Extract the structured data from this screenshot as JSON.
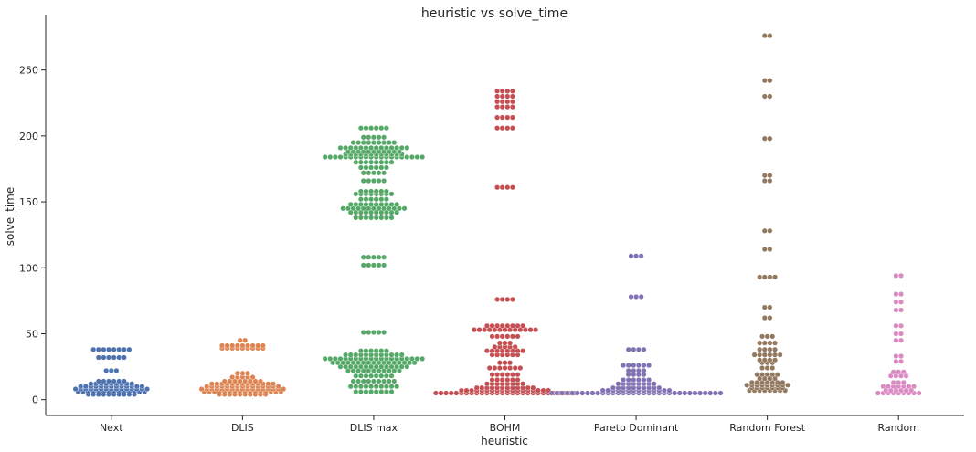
{
  "chart_data": {
    "type": "swarm",
    "title": "heuristic vs solve_time",
    "xlabel": "heuristic",
    "ylabel": "solve_time",
    "ylim": [
      -12,
      292
    ],
    "yticks": [
      0,
      50,
      100,
      150,
      200,
      250
    ],
    "grid": false,
    "legend": "none",
    "categories": [
      "Next",
      "DLIS",
      "DLIS max",
      "BOHM",
      "Pareto Dominant",
      "Random Forest",
      "Random"
    ],
    "colors": [
      "#4c72b0",
      "#dd8452",
      "#55a868",
      "#c44e52",
      "#8172b3",
      "#937860",
      "#da8bc3"
    ],
    "series": [
      {
        "category": "Next",
        "groups": [
          [
            4,
            10
          ],
          [
            6,
            14
          ],
          [
            8,
            15
          ],
          [
            10,
            13
          ],
          [
            12,
            9
          ],
          [
            14,
            6
          ],
          [
            22,
            3
          ],
          [
            32,
            6
          ],
          [
            38,
            8
          ]
        ]
      },
      {
        "category": "DLIS",
        "groups": [
          [
            4,
            10
          ],
          [
            6,
            16
          ],
          [
            8,
            17
          ],
          [
            10,
            15
          ],
          [
            12,
            13
          ],
          [
            14,
            8
          ],
          [
            17,
            5
          ],
          [
            20,
            3
          ],
          [
            39,
            9
          ],
          [
            41,
            9
          ],
          [
            45,
            2
          ]
        ]
      },
      {
        "category": "DLIS max",
        "groups": [
          [
            6,
            8
          ],
          [
            10,
            10
          ],
          [
            14,
            9
          ],
          [
            18,
            8
          ],
          [
            22,
            11
          ],
          [
            25,
            14
          ],
          [
            28,
            17
          ],
          [
            31,
            20
          ],
          [
            34,
            12
          ],
          [
            37,
            6
          ],
          [
            51,
            5
          ],
          [
            102,
            5
          ],
          [
            108,
            5
          ],
          [
            138,
            8
          ],
          [
            142,
            10
          ],
          [
            145,
            13
          ],
          [
            148,
            10
          ],
          [
            152,
            6
          ],
          [
            156,
            8
          ],
          [
            158,
            6
          ],
          [
            166,
            5
          ],
          [
            172,
            5
          ],
          [
            176,
            6
          ],
          [
            180,
            8
          ],
          [
            184,
            20
          ],
          [
            186,
            12
          ],
          [
            188,
            11
          ],
          [
            191,
            14
          ],
          [
            195,
            9
          ],
          [
            199,
            5
          ],
          [
            206,
            6
          ]
        ]
      },
      {
        "category": "BOHM",
        "groups": [
          [
            5,
            28
          ],
          [
            7,
            18
          ],
          [
            9,
            12
          ],
          [
            12,
            8
          ],
          [
            15,
            6
          ],
          [
            19,
            6
          ],
          [
            24,
            7
          ],
          [
            28,
            3
          ],
          [
            34,
            6
          ],
          [
            37,
            8
          ],
          [
            40,
            5
          ],
          [
            43,
            3
          ],
          [
            48,
            6
          ],
          [
            53,
            13
          ],
          [
            56,
            8
          ],
          [
            76,
            4
          ],
          [
            161,
            4
          ],
          [
            206,
            4
          ],
          [
            214,
            4
          ],
          [
            222,
            4
          ],
          [
            226,
            4
          ],
          [
            230,
            4
          ],
          [
            234,
            4
          ]
        ]
      },
      {
        "category": "Pareto Dominant",
        "groups": [
          [
            5,
            34
          ],
          [
            7,
            14
          ],
          [
            9,
            10
          ],
          [
            12,
            8
          ],
          [
            15,
            6
          ],
          [
            19,
            4
          ],
          [
            22,
            4
          ],
          [
            26,
            6
          ],
          [
            38,
            4
          ],
          [
            78,
            3
          ],
          [
            109,
            3
          ]
        ]
      },
      {
        "category": "Random Forest",
        "groups": [
          [
            7,
            8
          ],
          [
            9,
            7
          ],
          [
            11,
            9
          ],
          [
            13,
            7
          ],
          [
            16,
            4
          ],
          [
            19,
            5
          ],
          [
            24,
            3
          ],
          [
            28,
            3
          ],
          [
            30,
            4
          ],
          [
            34,
            6
          ],
          [
            38,
            4
          ],
          [
            43,
            4
          ],
          [
            48,
            3
          ],
          [
            62,
            2
          ],
          [
            70,
            2
          ],
          [
            93,
            4
          ],
          [
            114,
            2
          ],
          [
            128,
            2
          ],
          [
            166,
            2
          ],
          [
            170,
            2
          ],
          [
            198,
            2
          ],
          [
            230,
            2
          ],
          [
            242,
            2
          ],
          [
            276,
            2
          ]
        ]
      },
      {
        "category": "Random",
        "groups": [
          [
            5,
            9
          ],
          [
            7,
            6
          ],
          [
            10,
            7
          ],
          [
            13,
            3
          ],
          [
            18,
            4
          ],
          [
            21,
            3
          ],
          [
            29,
            2
          ],
          [
            33,
            2
          ],
          [
            45,
            2
          ],
          [
            50,
            2
          ],
          [
            56,
            2
          ],
          [
            68,
            2
          ],
          [
            74,
            2
          ],
          [
            80,
            2
          ],
          [
            94,
            2
          ]
        ]
      }
    ]
  }
}
